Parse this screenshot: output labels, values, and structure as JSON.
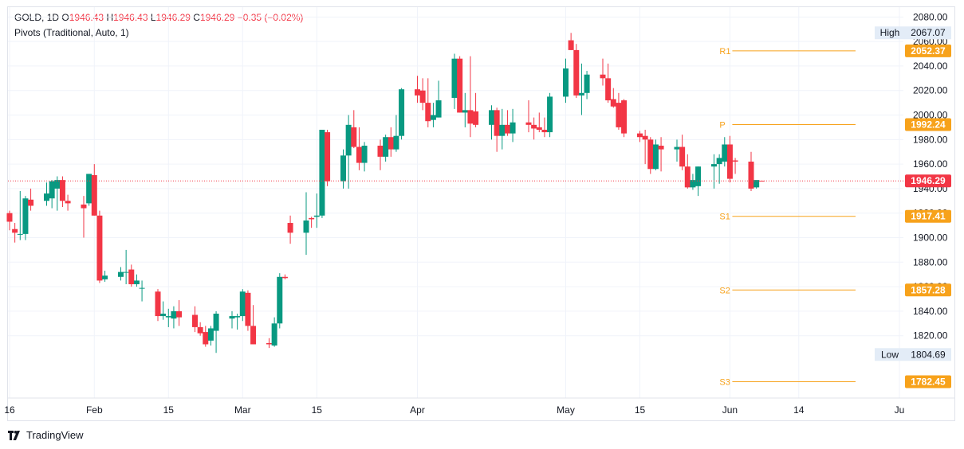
{
  "legend": {
    "symbol": "GOLD",
    "interval": "1D",
    "open_label": "O",
    "open": "1946.43",
    "high_label": "H",
    "high": "1946.43",
    "low_label": "L",
    "low": "1946.29",
    "close_label": "C",
    "close": "1946.29",
    "change": "−0.35 (−0.02%)",
    "indicator": "Pivots (Traditional, Auto, 1)"
  },
  "footer": {
    "brand": "TradingView",
    "logo_icon": "tradingview-logo-icon"
  },
  "colors": {
    "up": "#089981",
    "down": "#f23645",
    "pivot": "#f7a21b",
    "last_price": "#f23645",
    "grid": "#f0f3fa"
  },
  "chart_data": {
    "type": "candlestick",
    "ylim": [
      1775,
      2088
    ],
    "y_ticks": [
      1820,
      1840,
      1860,
      1880,
      1900,
      1920,
      1940,
      1960,
      1980,
      2000,
      2020,
      2040,
      2060,
      2080
    ],
    "y_tick_labels": [
      "1820.00",
      "1840.00",
      "1860.00",
      "1880.00",
      "1900.00",
      "1920.00",
      "1940.00",
      "1960.00",
      "1980.00",
      "2000.00",
      "2020.00",
      "2040.00",
      "2060.00",
      "2080.00"
    ],
    "x_labels": [
      {
        "label": "16",
        "date": "2023-01-16"
      },
      {
        "label": "Feb",
        "date": "2023-02-01"
      },
      {
        "label": "15",
        "date": "2023-02-15"
      },
      {
        "label": "Mar",
        "date": "2023-03-01"
      },
      {
        "label": "15",
        "date": "2023-03-15"
      },
      {
        "label": "Apr",
        "date": "2023-04-03"
      },
      {
        "label": "May",
        "date": "2023-05-01"
      },
      {
        "label": "15",
        "date": "2023-05-15"
      },
      {
        "label": "Jun",
        "date": "2023-06-01"
      },
      {
        "label": "14",
        "date": "2023-06-14"
      },
      {
        "label": "Ju",
        "date": "2023-07-03"
      }
    ],
    "candles": [
      {
        "date": "2023-01-16",
        "o": 1920,
        "h": 1922,
        "l": 1906,
        "c": 1913
      },
      {
        "date": "2023-01-17",
        "o": 1907,
        "h": 1912,
        "l": 1896,
        "c": 1904
      },
      {
        "date": "2023-01-18",
        "o": 1903,
        "h": 1938,
        "l": 1898,
        "c": 1903
      },
      {
        "date": "2023-01-19",
        "o": 1903,
        "h": 1934,
        "l": 1898,
        "c": 1932
      },
      {
        "date": "2023-01-20",
        "o": 1931,
        "h": 1940,
        "l": 1922,
        "c": 1926
      },
      {
        "date": "2023-01-23",
        "o": 1930,
        "h": 1945,
        "l": 1926,
        "c": 1936
      },
      {
        "date": "2023-01-24",
        "o": 1932,
        "h": 1947,
        "l": 1924,
        "c": 1946
      },
      {
        "date": "2023-01-25",
        "o": 1940,
        "h": 1950,
        "l": 1922,
        "c": 1947
      },
      {
        "date": "2023-01-26",
        "o": 1947,
        "h": 1950,
        "l": 1925,
        "c": 1930
      },
      {
        "date": "2023-01-27",
        "o": 1930,
        "h": 1935,
        "l": 1922,
        "c": 1928
      },
      {
        "date": "2023-01-30",
        "o": 1927,
        "h": 1934,
        "l": 1900,
        "c": 1924
      },
      {
        "date": "2023-01-31",
        "o": 1928,
        "h": 1952,
        "l": 1926,
        "c": 1952
      },
      {
        "date": "2023-02-01",
        "o": 1951,
        "h": 1960,
        "l": 1918,
        "c": 1918
      },
      {
        "date": "2023-02-02",
        "o": 1918,
        "h": 1922,
        "l": 1863,
        "c": 1865
      },
      {
        "date": "2023-02-03",
        "o": 1866,
        "h": 1873,
        "l": 1864,
        "c": 1869
      },
      {
        "date": "2023-02-06",
        "o": 1868,
        "h": 1876,
        "l": 1865,
        "c": 1872
      },
      {
        "date": "2023-02-07",
        "o": 1872,
        "h": 1890,
        "l": 1862,
        "c": 1872
      },
      {
        "date": "2023-02-08",
        "o": 1874,
        "h": 1878,
        "l": 1860,
        "c": 1862
      },
      {
        "date": "2023-02-09",
        "o": 1862,
        "h": 1870,
        "l": 1860,
        "c": 1865
      },
      {
        "date": "2023-02-10",
        "o": 1859,
        "h": 1865,
        "l": 1848,
        "c": 1859
      },
      {
        "date": "2023-02-13",
        "o": 1856,
        "h": 1858,
        "l": 1832,
        "c": 1836
      },
      {
        "date": "2023-02-14",
        "o": 1836,
        "h": 1848,
        "l": 1833,
        "c": 1838
      },
      {
        "date": "2023-02-15",
        "o": 1835,
        "h": 1842,
        "l": 1827,
        "c": 1836
      },
      {
        "date": "2023-02-16",
        "o": 1834,
        "h": 1844,
        "l": 1826,
        "c": 1840
      },
      {
        "date": "2023-02-17",
        "o": 1840,
        "h": 1849,
        "l": 1828,
        "c": 1835
      },
      {
        "date": "2023-02-20",
        "o": 1837,
        "h": 1844,
        "l": 1823,
        "c": 1827
      },
      {
        "date": "2023-02-21",
        "o": 1827,
        "h": 1831,
        "l": 1820,
        "c": 1822
      },
      {
        "date": "2023-02-22",
        "o": 1823,
        "h": 1828,
        "l": 1811,
        "c": 1813
      },
      {
        "date": "2023-02-23",
        "o": 1816,
        "h": 1828,
        "l": 1812,
        "c": 1826
      },
      {
        "date": "2023-02-24",
        "o": 1824,
        "h": 1840,
        "l": 1806,
        "c": 1838
      },
      {
        "date": "2023-02-27",
        "o": 1834,
        "h": 1840,
        "l": 1826,
        "c": 1836
      },
      {
        "date": "2023-02-28",
        "o": 1835,
        "h": 1838,
        "l": 1825,
        "c": 1836
      },
      {
        "date": "2023-03-01",
        "o": 1836,
        "h": 1858,
        "l": 1832,
        "c": 1856
      },
      {
        "date": "2023-03-02",
        "o": 1855,
        "h": 1857,
        "l": 1824,
        "c": 1828
      },
      {
        "date": "2023-03-03",
        "o": 1828,
        "h": 1845,
        "l": 1813,
        "c": 1813
      },
      {
        "date": "2023-03-06",
        "o": 1814,
        "h": 1818,
        "l": 1810,
        "c": 1813
      },
      {
        "date": "2023-03-07",
        "o": 1812,
        "h": 1835,
        "l": 1811,
        "c": 1830
      },
      {
        "date": "2023-03-08",
        "o": 1830,
        "h": 1871,
        "l": 1826,
        "c": 1868
      },
      {
        "date": "2023-03-09",
        "o": 1868,
        "h": 1870,
        "l": 1866,
        "c": 1867
      },
      {
        "date": "2023-03-10",
        "o": 1912,
        "h": 1918,
        "l": 1895,
        "c": 1904
      },
      {
        "date": "2023-03-13",
        "o": 1904,
        "h": 1937,
        "l": 1886,
        "c": 1914
      },
      {
        "date": "2023-03-14",
        "o": 1916,
        "h": 1917,
        "l": 1908,
        "c": 1915
      },
      {
        "date": "2023-03-15",
        "o": 1917,
        "h": 1936,
        "l": 1908,
        "c": 1918
      },
      {
        "date": "2023-03-16",
        "o": 1918,
        "h": 1988,
        "l": 1916,
        "c": 1988
      },
      {
        "date": "2023-03-17",
        "o": 1986,
        "h": 1988,
        "l": 1942,
        "c": 1946
      },
      {
        "date": "2023-03-20",
        "o": 1946,
        "h": 1972,
        "l": 1940,
        "c": 1967
      },
      {
        "date": "2023-03-21",
        "o": 1967,
        "h": 2000,
        "l": 1940,
        "c": 1992
      },
      {
        "date": "2023-03-22",
        "o": 1990,
        "h": 2004,
        "l": 1973,
        "c": 1974
      },
      {
        "date": "2023-03-23",
        "o": 1974,
        "h": 1990,
        "l": 1955,
        "c": 1961
      },
      {
        "date": "2023-03-24",
        "o": 1961,
        "h": 1978,
        "l": 1954,
        "c": 1975
      },
      {
        "date": "2023-03-27",
        "o": 1975,
        "h": 1980,
        "l": 1955,
        "c": 1966
      },
      {
        "date": "2023-03-28",
        "o": 1966,
        "h": 1984,
        "l": 1962,
        "c": 1982
      },
      {
        "date": "2023-03-29",
        "o": 1982,
        "h": 1990,
        "l": 1966,
        "c": 1972
      },
      {
        "date": "2023-03-30",
        "o": 1972,
        "h": 2000,
        "l": 1970,
        "c": 1983
      },
      {
        "date": "2023-03-31",
        "o": 1983,
        "h": 2022,
        "l": 1980,
        "c": 2021
      },
      {
        "date": "2023-04-03",
        "o": 2021,
        "h": 2032,
        "l": 2010,
        "c": 2016
      },
      {
        "date": "2023-04-04",
        "o": 2020,
        "h": 2030,
        "l": 2004,
        "c": 2010
      },
      {
        "date": "2023-04-05",
        "o": 2010,
        "h": 2030,
        "l": 1990,
        "c": 1995
      },
      {
        "date": "2023-04-06",
        "o": 1996,
        "h": 2010,
        "l": 1990,
        "c": 2000
      },
      {
        "date": "2023-04-07",
        "o": 1998,
        "h": 2028,
        "l": 1998,
        "c": 2012
      },
      {
        "date": "2023-04-10",
        "o": 2014,
        "h": 2050,
        "l": 2005,
        "c": 2046
      },
      {
        "date": "2023-04-11",
        "o": 2046,
        "h": 2048,
        "l": 2002,
        "c": 2002
      },
      {
        "date": "2023-04-12",
        "o": 2002,
        "h": 2018,
        "l": 1990,
        "c": 2004
      },
      {
        "date": "2023-04-13",
        "o": 2004,
        "h": 2048,
        "l": 1982,
        "c": 1993
      },
      {
        "date": "2023-04-14",
        "o": 2003,
        "h": 2018,
        "l": 1990,
        "c": 1992
      },
      {
        "date": "2023-04-17",
        "o": 1992,
        "h": 2008,
        "l": 1980,
        "c": 2004
      },
      {
        "date": "2023-04-18",
        "o": 2004,
        "h": 2006,
        "l": 1970,
        "c": 1983
      },
      {
        "date": "2023-04-19",
        "o": 1983,
        "h": 2005,
        "l": 1972,
        "c": 1992
      },
      {
        "date": "2023-04-20",
        "o": 1992,
        "h": 2004,
        "l": 1983,
        "c": 1985
      },
      {
        "date": "2023-04-21",
        "o": 1985,
        "h": 2005,
        "l": 1978,
        "c": 1994
      },
      {
        "date": "2023-04-24",
        "o": 1994,
        "h": 2012,
        "l": 1986,
        "c": 1992
      },
      {
        "date": "2023-04-25",
        "o": 1992,
        "h": 1998,
        "l": 1980,
        "c": 1989
      },
      {
        "date": "2023-04-26",
        "o": 1990,
        "h": 2002,
        "l": 1986,
        "c": 1988
      },
      {
        "date": "2023-04-27",
        "o": 1988,
        "h": 1998,
        "l": 1982,
        "c": 1986
      },
      {
        "date": "2023-04-28",
        "o": 1986,
        "h": 2018,
        "l": 1982,
        "c": 2015
      },
      {
        "date": "2023-05-01",
        "o": 2015,
        "h": 2046,
        "l": 2010,
        "c": 2038
      },
      {
        "date": "2023-05-02",
        "o": 2061,
        "h": 2067,
        "l": 2053,
        "c": 2053
      },
      {
        "date": "2023-05-03",
        "o": 2053,
        "h": 2058,
        "l": 2014,
        "c": 2016
      },
      {
        "date": "2023-05-04",
        "o": 2016,
        "h": 2042,
        "l": 2000,
        "c": 2018
      },
      {
        "date": "2023-05-05",
        "o": 2018,
        "h": 2036,
        "l": 2013,
        "c": 2033
      },
      {
        "date": "2023-05-08",
        "o": 2033,
        "h": 2046,
        "l": 2024,
        "c": 2030
      },
      {
        "date": "2023-05-09",
        "o": 2030,
        "h": 2042,
        "l": 2010,
        "c": 2012
      },
      {
        "date": "2023-05-10",
        "o": 2013,
        "h": 2022,
        "l": 2006,
        "c": 2007
      },
      {
        "date": "2023-05-11",
        "o": 2010,
        "h": 2018,
        "l": 1988,
        "c": 1990
      },
      {
        "date": "2023-05-12",
        "o": 2012,
        "h": 2013,
        "l": 1982,
        "c": 1985
      },
      {
        "date": "2023-05-15",
        "o": 1985,
        "h": 1987,
        "l": 1978,
        "c": 1982
      },
      {
        "date": "2023-05-16",
        "o": 1983,
        "h": 1988,
        "l": 1960,
        "c": 1980
      },
      {
        "date": "2023-05-17",
        "o": 1980,
        "h": 1982,
        "l": 1952,
        "c": 1956
      },
      {
        "date": "2023-05-18",
        "o": 1956,
        "h": 1980,
        "l": 1955,
        "c": 1976
      },
      {
        "date": "2023-05-19",
        "o": 1975,
        "h": 1982,
        "l": 1954,
        "c": 1972
      },
      {
        "date": "2023-05-22",
        "o": 1972,
        "h": 1980,
        "l": 1962,
        "c": 1974
      },
      {
        "date": "2023-05-23",
        "o": 1974,
        "h": 1984,
        "l": 1955,
        "c": 1958
      },
      {
        "date": "2023-05-24",
        "o": 1958,
        "h": 1968,
        "l": 1940,
        "c": 1941
      },
      {
        "date": "2023-05-25",
        "o": 1941,
        "h": 1952,
        "l": 1939,
        "c": 1947
      },
      {
        "date": "2023-05-26",
        "o": 1942,
        "h": 1958,
        "l": 1934,
        "c": 1958
      },
      {
        "date": "2023-05-29",
        "o": 1958,
        "h": 1968,
        "l": 1940,
        "c": 1960
      },
      {
        "date": "2023-05-30",
        "o": 1960,
        "h": 1968,
        "l": 1944,
        "c": 1965
      },
      {
        "date": "2023-05-31",
        "o": 1962,
        "h": 1982,
        "l": 1958,
        "c": 1976
      },
      {
        "date": "2023-06-01",
        "o": 1976,
        "h": 1983,
        "l": 1945,
        "c": 1948
      },
      {
        "date": "2023-06-02",
        "o": 1963,
        "h": 1965,
        "l": 1952,
        "c": 1962
      },
      {
        "date": "2023-06-05",
        "o": 1962,
        "h": 1970,
        "l": 1938,
        "c": 1940
      },
      {
        "date": "2023-06-06",
        "o": 1941,
        "h": 1946,
        "l": 1940,
        "c": 1947
      },
      {
        "date": "2023-06-07",
        "o": 1946.43,
        "h": 1946.43,
        "l": 1946.29,
        "c": 1946.29
      }
    ],
    "pivots": [
      {
        "label": "R1",
        "value": 2052.37,
        "display": "2052.37"
      },
      {
        "label": "P",
        "value": 1992.24,
        "display": "1992.24"
      },
      {
        "label": "S1",
        "value": 1917.41,
        "display": "1917.41"
      },
      {
        "label": "S2",
        "value": 1857.28,
        "display": "1857.28"
      },
      {
        "label": "S3",
        "value": 1782.45,
        "display": "1782.45"
      }
    ],
    "pivot_start_date": "2023-06-01",
    "pivot_end_date": "2023-06-30",
    "high": {
      "label": "High",
      "value": 2067.07,
      "display": "2067.07"
    },
    "low": {
      "label": "Low",
      "value": 1804.69,
      "display": "1804.69"
    },
    "last_price": {
      "value": 1946.29,
      "display": "1946.29"
    },
    "x_range": [
      "2023-01-15",
      "2023-07-05"
    ]
  }
}
